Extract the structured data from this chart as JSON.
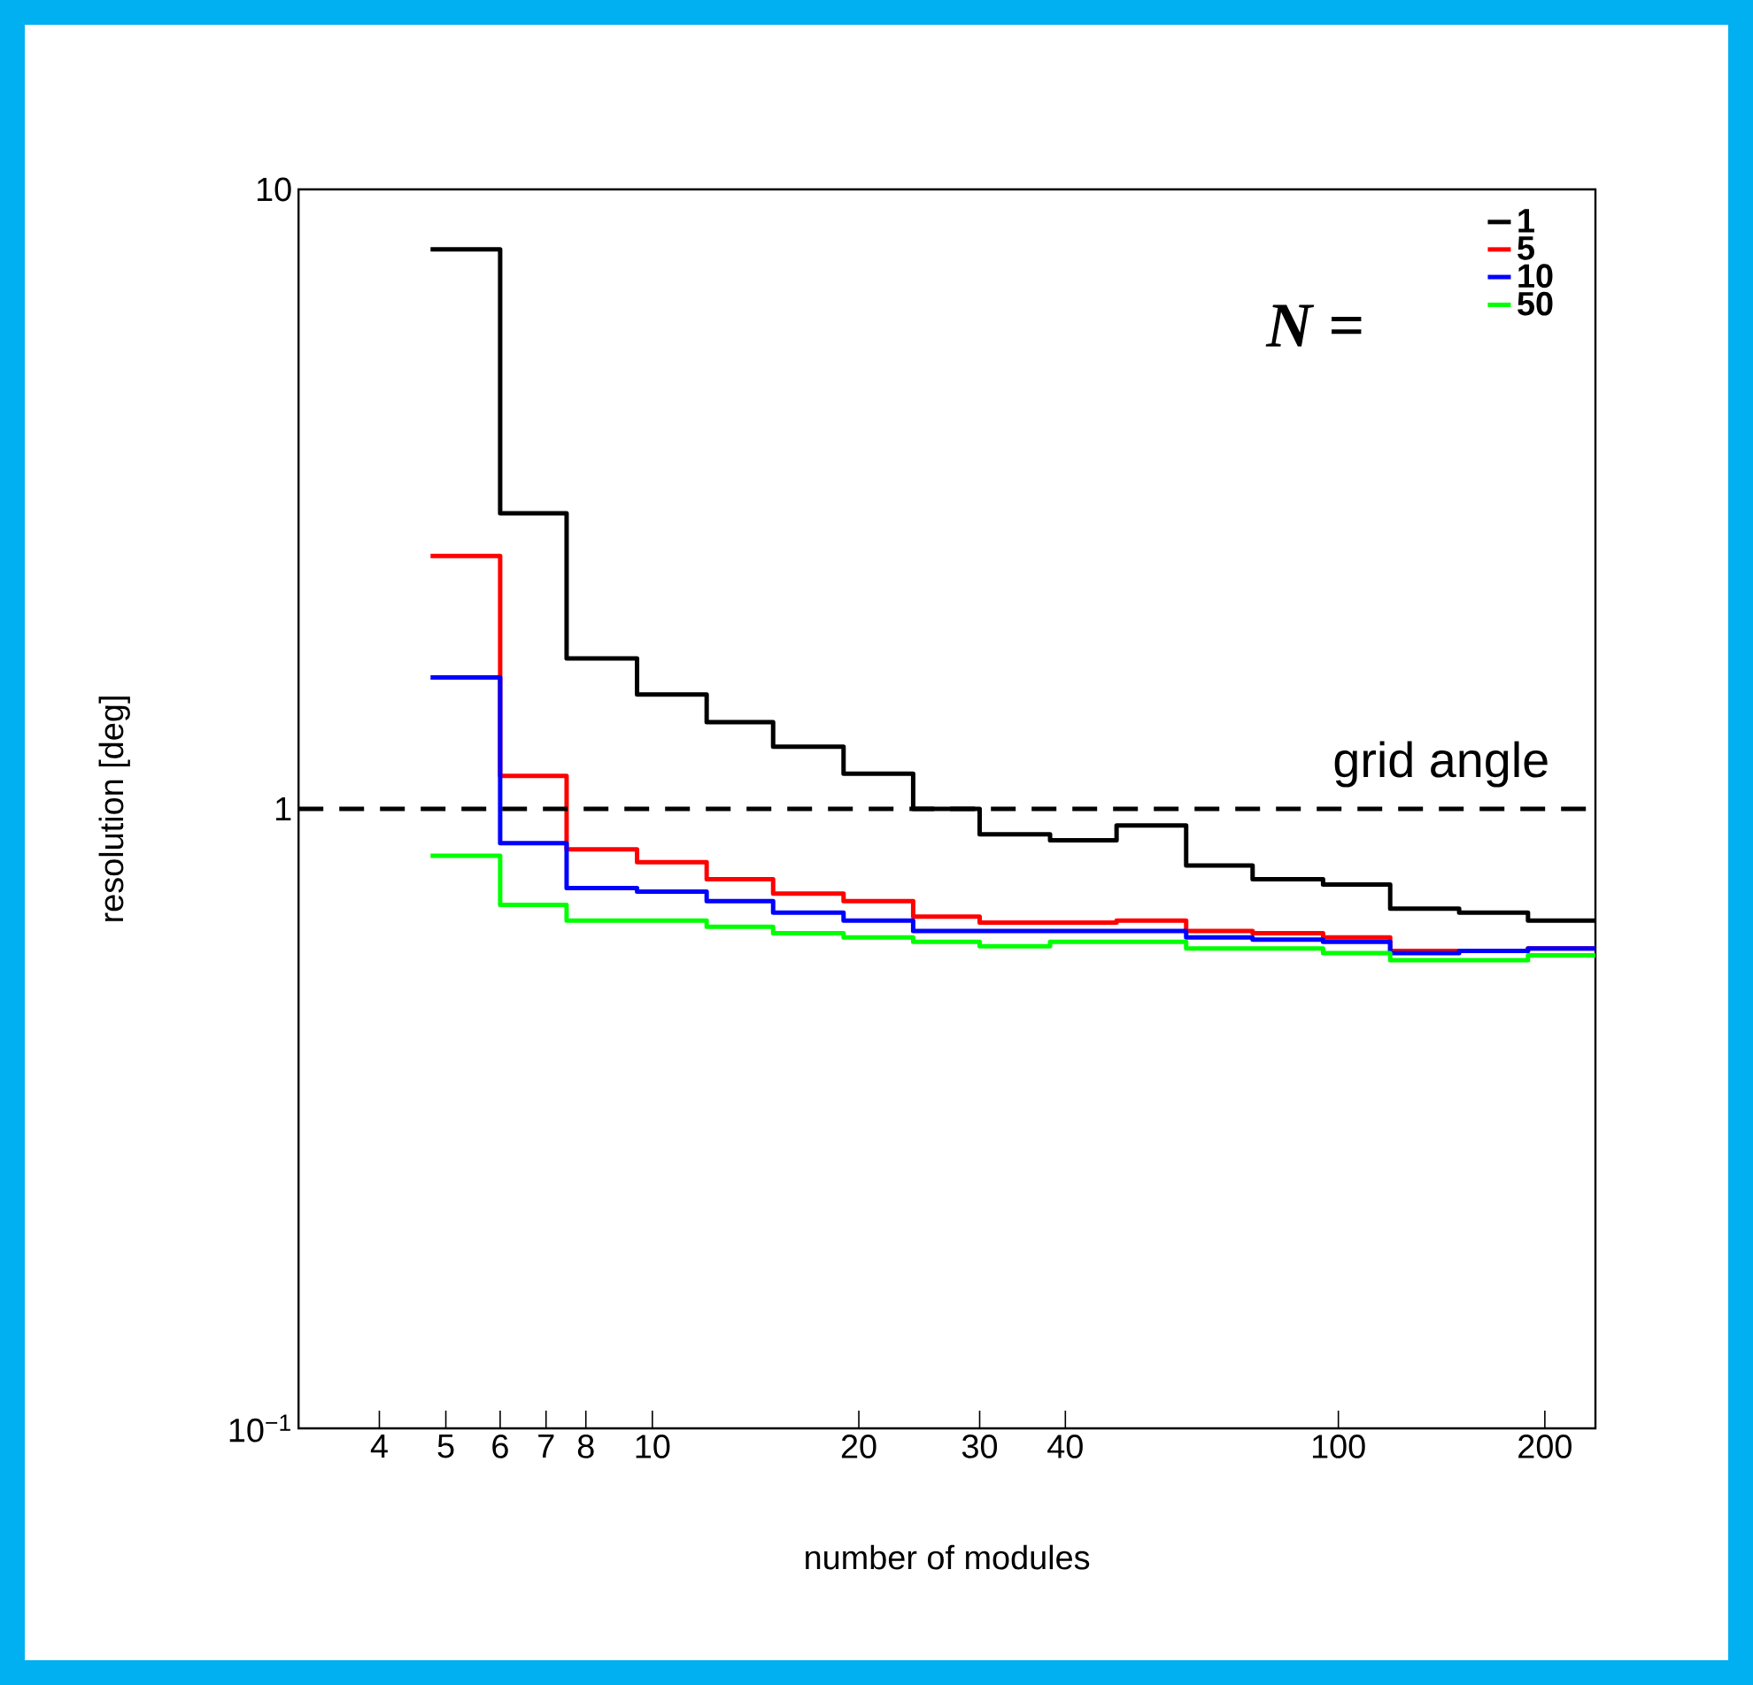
{
  "chart_data": {
    "type": "histogram",
    "xlabel": "number of modules",
    "ylabel": "resolution [deg]",
    "legend_title": "N =",
    "log": "xy",
    "legend": "top right",
    "grid": false,
    "bins": [
      4.75,
      6,
      7.5,
      9.5,
      12,
      15,
      19,
      24,
      30,
      38,
      47.5,
      60,
      75,
      95,
      119,
      150,
      189,
      237
    ],
    "xlim": [
      3.05,
      237
    ],
    "xticks": [
      4,
      5,
      6,
      7,
      8,
      10,
      20,
      30,
      40,
      100,
      200
    ],
    "ylim": [
      0.1,
      10
    ],
    "yticks": [
      {
        "value": 0.1,
        "label": "10$^{−1}$"
      },
      1,
      10
    ],
    "series": [
      {
        "name": "1",
        "color": "#000000",
        "values": [
          8.0,
          3.0,
          1.75,
          1.53,
          1.38,
          1.26,
          1.14,
          1.0,
          0.91,
          0.89,
          0.94,
          0.81,
          0.77,
          0.755,
          0.69,
          0.68,
          0.66
        ]
      },
      {
        "name": "5",
        "color": "#ff0000",
        "values": [
          2.56,
          1.13,
          0.86,
          0.82,
          0.77,
          0.73,
          0.71,
          0.67,
          0.655,
          0.655,
          0.66,
          0.635,
          0.63,
          0.62,
          0.59,
          0.59,
          0.595
        ]
      },
      {
        "name": "10",
        "color": "#0000ff",
        "values": [
          1.63,
          0.88,
          0.745,
          0.735,
          0.71,
          0.68,
          0.66,
          0.635,
          0.635,
          0.635,
          0.635,
          0.62,
          0.615,
          0.61,
          0.585,
          0.59,
          0.595
        ]
      },
      {
        "name": "50",
        "color": "#00ff00",
        "values": [
          0.84,
          0.7,
          0.66,
          0.66,
          0.645,
          0.63,
          0.62,
          0.61,
          0.6,
          0.61,
          0.61,
          0.595,
          0.595,
          0.585,
          0.57,
          0.57,
          0.58
        ]
      }
    ],
    "ref_lines": [
      {
        "axis": "y",
        "value": 1,
        "label": "grid angle",
        "line_style": "dashed"
      }
    ]
  }
}
